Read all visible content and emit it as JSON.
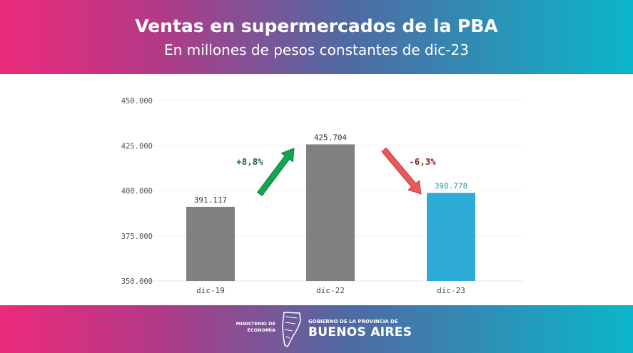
{
  "header": {
    "title": "Ventas en supermercados de la PBA",
    "subtitle": "En millones de pesos constantes de dic-23"
  },
  "footer": {
    "ministry": "MINISTERIO DE ECONOMÍA",
    "gov_line": "GOBIERNO DE LA PROVINCIA DE",
    "province": "BUENOS AIRES"
  },
  "colors": {
    "bar_default": "#808080",
    "bar_highlight": "#2eaad6",
    "up": "#13a552",
    "down": "#e85a5a",
    "up_text": "#1f6b3a",
    "down_text": "#8a2020",
    "highlight_text": "#2a9aa8"
  },
  "chart_data": {
    "type": "bar",
    "title": "Ventas en supermercados de la PBA",
    "subtitle": "En millones de pesos constantes de dic-23",
    "categories": [
      "dic-19",
      "dic-22",
      "dic-23"
    ],
    "values": [
      391117,
      425704,
      398778
    ],
    "value_labels": [
      "391.117",
      "425.704",
      "398.778"
    ],
    "ylim": [
      350000,
      450000
    ],
    "yticks": [
      350000,
      375000,
      400000,
      425000,
      450000
    ],
    "ytick_labels": [
      "350.000",
      "375.000",
      "400.000",
      "425.000",
      "450.000"
    ],
    "grid": true,
    "annotations": [
      {
        "text": "+8,8%",
        "direction": "up",
        "from": "dic-19",
        "to": "dic-22"
      },
      {
        "text": "-6,3%",
        "direction": "down",
        "from": "dic-22",
        "to": "dic-23"
      }
    ]
  }
}
